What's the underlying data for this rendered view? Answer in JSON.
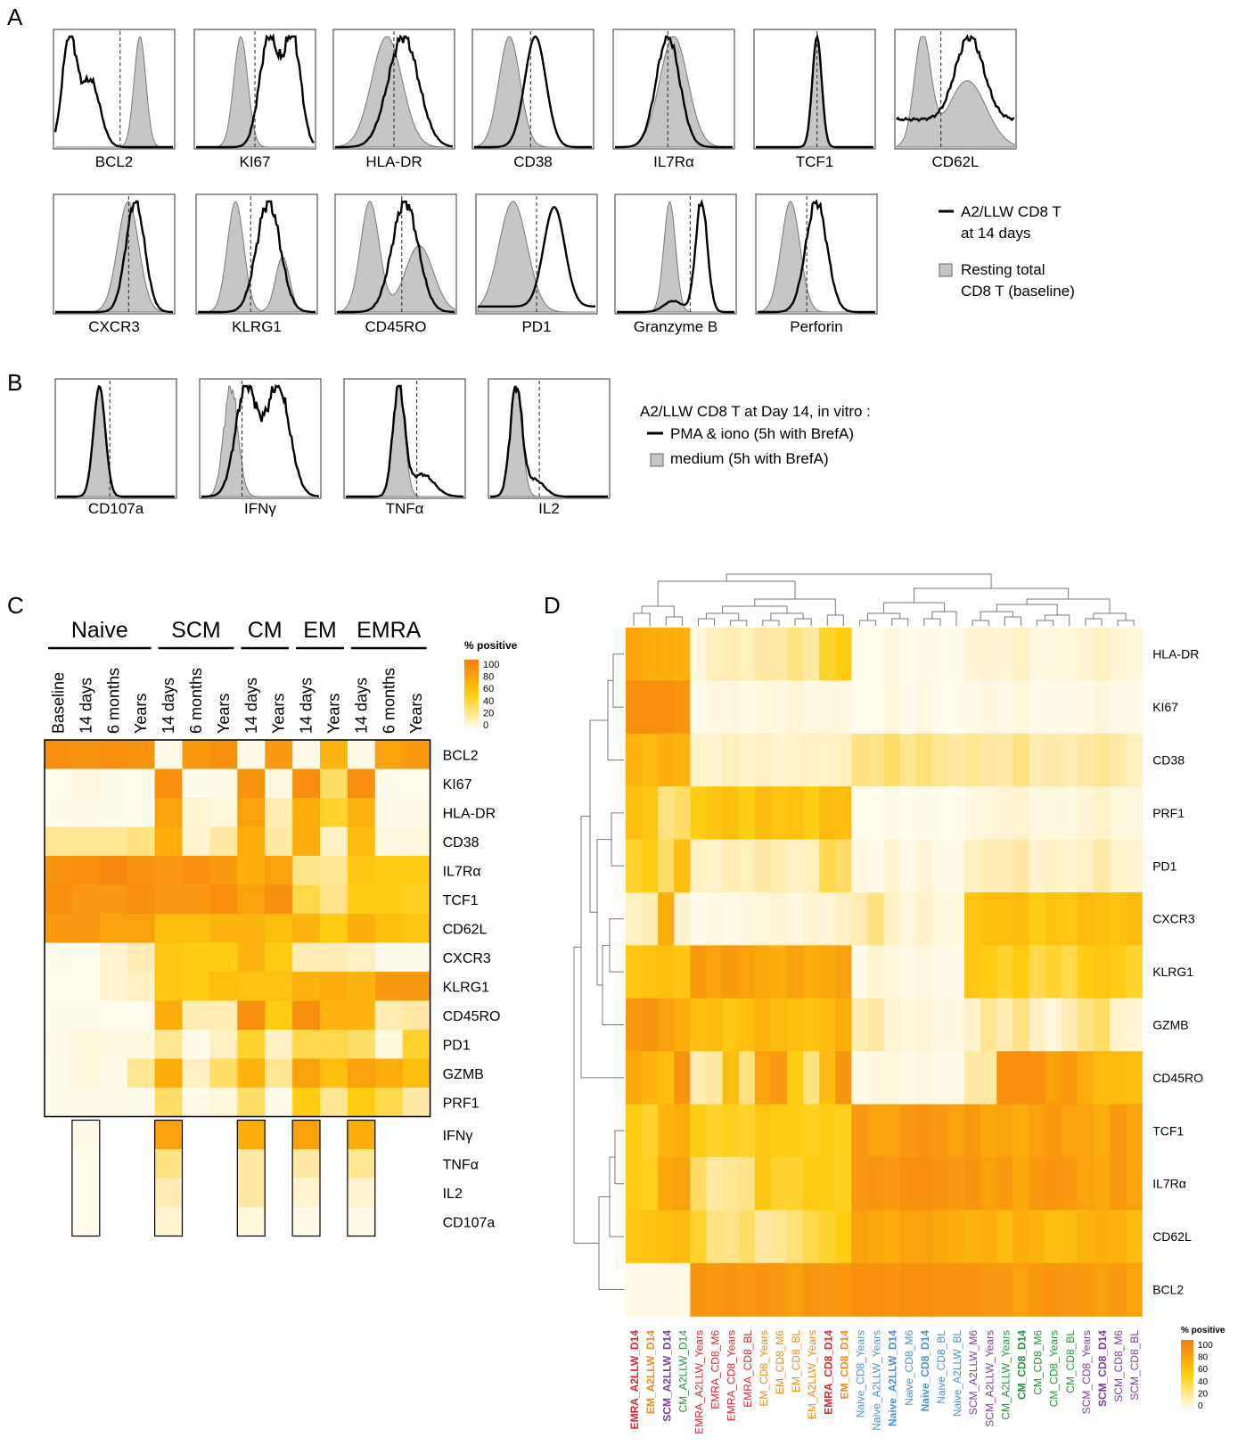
{
  "panels": {
    "A": "A",
    "B": "B",
    "C": "C",
    "D": "D"
  },
  "panelA": {
    "row1": [
      "BCL2",
      "KI67",
      "HLA-DR",
      "CD38",
      "IL7Rα",
      "TCF1",
      "CD62L"
    ],
    "row2": [
      "CXCR3",
      "KLRG1",
      "CD45RO",
      "PD1",
      "Granzyme B",
      "Perforin"
    ],
    "legend": {
      "line_label_1": "A2/LLW CD8 T",
      "line_label_2": "at 14 days",
      "fill_label_1": "Resting total",
      "fill_label_2": "CD8 T (baseline)"
    }
  },
  "panelB": {
    "labels": [
      "CD107a",
      "IFNγ",
      "TNFα",
      "IL2"
    ],
    "legend": {
      "title": "A2/LLW CD8 T at Day 14, in vitro :",
      "line_label": "PMA & iono (5h with BrefA)",
      "fill_label": "medium (5h with BrefA)"
    }
  },
  "panelC": {
    "groups": [
      "Naive",
      "SCM",
      "CM",
      "EM",
      "EMRA"
    ],
    "columns": [
      "Baseline",
      "14 days",
      "6 months",
      "Years",
      "14 days",
      "6 months",
      "Years",
      "14 days",
      "Years",
      "14 days",
      "Years",
      "14 days",
      "6 months",
      "Years"
    ],
    "rows": [
      "BCL2",
      "KI67",
      "HLA-DR",
      "CD38",
      "IL7Rα",
      "TCF1",
      "CD62L",
      "CXCR3",
      "KLRG1",
      "CD45RO",
      "PD1",
      "GZMB",
      "PRF1"
    ],
    "func_rows": [
      "IFNγ",
      "TNFα",
      "IL2",
      "CD107a"
    ],
    "legend_title": "% positive",
    "legend_ticks": [
      "100",
      "80",
      "60",
      "40",
      "20",
      "0"
    ]
  },
  "panelD": {
    "rows": [
      "HLA-DR",
      "KI67",
      "CD38",
      "PRF1",
      "PD1",
      "CXCR3",
      "KLRG1",
      "GZMB",
      "CD45RO",
      "TCF1",
      "IL7Rα",
      "CD62L",
      "BCL2"
    ],
    "columns": [
      {
        "label": "EMRA_A2LLW_D14",
        "color": "#e0262b",
        "bold": true
      },
      {
        "label": "EM_A2LLW_D14",
        "color": "#f08a1c",
        "bold": true
      },
      {
        "label": "SCM_A2LLW_D14",
        "color": "#7a3f9d",
        "bold": true
      },
      {
        "label": "CM_A2LLW_D14",
        "color": "#22963a",
        "bold": false
      },
      {
        "label": "EMRA_A2LLW_Years",
        "color": "#e0262b",
        "bold": false
      },
      {
        "label": "EMRA_CD8_M6",
        "color": "#e0262b",
        "bold": false
      },
      {
        "label": "EMRA_CD8_Years",
        "color": "#e0262b",
        "bold": false
      },
      {
        "label": "EMRA_CD8_BL",
        "color": "#e0262b",
        "bold": false
      },
      {
        "label": "EM_CD8_Years",
        "color": "#f08a1c",
        "bold": false
      },
      {
        "label": "EM_CD8_M6",
        "color": "#f08a1c",
        "bold": false
      },
      {
        "label": "EM_CD8_BL",
        "color": "#f08a1c",
        "bold": false
      },
      {
        "label": "EM_A2LLW_Years",
        "color": "#f08a1c",
        "bold": false
      },
      {
        "label": "EMRA_CD8_D14",
        "color": "#e0262b",
        "bold": true
      },
      {
        "label": "EM_CD8_D14",
        "color": "#f08a1c",
        "bold": true
      },
      {
        "label": "Naive_CD8_Years",
        "color": "#4a90d9",
        "bold": false
      },
      {
        "label": "Naive_A2LLW_Years",
        "color": "#4a90d9",
        "bold": false
      },
      {
        "label": "Naive_A2LLW_D14",
        "color": "#4a90d9",
        "bold": true
      },
      {
        "label": "Naive_CD8_M6",
        "color": "#4a90d9",
        "bold": false
      },
      {
        "label": "Naive_CD8_D14",
        "color": "#4a90d9",
        "bold": true
      },
      {
        "label": "Naive_CD8_BL",
        "color": "#4a90d9",
        "bold": false
      },
      {
        "label": "Naive_A2LLW_BL",
        "color": "#4a90d9",
        "bold": false
      },
      {
        "label": "SCM_A2LLW_M6",
        "color": "#7a3f9d",
        "bold": false
      },
      {
        "label": "SCM_A2LLW_Years",
        "color": "#7a3f9d",
        "bold": false
      },
      {
        "label": "CM_A2LLW_Years",
        "color": "#22963a",
        "bold": false
      },
      {
        "label": "CM_CD8_D14",
        "color": "#22963a",
        "bold": true
      },
      {
        "label": "CM_CD8_M6",
        "color": "#22963a",
        "bold": false
      },
      {
        "label": "CM_CD8_Years",
        "color": "#22963a",
        "bold": false
      },
      {
        "label": "CM_CD8_BL",
        "color": "#22963a",
        "bold": false
      },
      {
        "label": "SCM_CD8_Years",
        "color": "#7a3f9d",
        "bold": false
      },
      {
        "label": "SCM_CD8_D14",
        "color": "#7a3f9d",
        "bold": true
      },
      {
        "label": "SCM_CD8_M6",
        "color": "#7a3f9d",
        "bold": false
      },
      {
        "label": "SCM_CD8_BL",
        "color": "#7a3f9d",
        "bold": false
      }
    ],
    "legend_title": "% positive",
    "legend_ticks": [
      "100",
      "80",
      "60",
      "40",
      "20",
      "0"
    ]
  },
  "chart_data": [
    {
      "type": "heatmap",
      "title": "",
      "value_unit": "% positive",
      "range": [
        0,
        100
      ],
      "groups": [
        "Naive",
        "SCM",
        "CM",
        "EM",
        "EMRA"
      ],
      "columns": [
        "Baseline",
        "14 days",
        "6 months",
        "Years",
        "14 days",
        "6 months",
        "Years",
        "14 days",
        "Years",
        "14 days",
        "Years",
        "14 days",
        "6 months",
        "Years"
      ],
      "rows": [
        "BCL2",
        "KI67",
        "HLA-DR",
        "CD38",
        "IL7Rα",
        "TCF1",
        "CD62L",
        "CXCR3",
        "KLRG1",
        "CD45RO",
        "PD1",
        "GZMB",
        "PRF1"
      ],
      "values": [
        [
          92,
          90,
          92,
          90,
          5,
          88,
          92,
          5,
          88,
          5,
          75,
          5,
          85,
          88
        ],
        [
          2,
          8,
          3,
          2,
          92,
          3,
          5,
          90,
          8,
          92,
          45,
          92,
          3,
          2
        ],
        [
          3,
          5,
          3,
          2,
          85,
          15,
          10,
          85,
          25,
          80,
          55,
          75,
          5,
          5
        ],
        [
          35,
          35,
          35,
          40,
          80,
          15,
          30,
          78,
          30,
          80,
          20,
          72,
          8,
          10
        ],
        [
          90,
          92,
          95,
          90,
          88,
          92,
          88,
          78,
          85,
          38,
          35,
          65,
          60,
          62
        ],
        [
          92,
          88,
          88,
          92,
          88,
          88,
          92,
          85,
          92,
          50,
          38,
          60,
          60,
          58
        ],
        [
          88,
          88,
          85,
          85,
          70,
          70,
          75,
          75,
          70,
          75,
          62,
          80,
          70,
          65
        ],
        [
          3,
          2,
          15,
          25,
          65,
          60,
          60,
          75,
          62,
          25,
          25,
          20,
          3,
          3
        ],
        [
          2,
          2,
          15,
          20,
          65,
          62,
          70,
          68,
          68,
          75,
          80,
          75,
          88,
          88
        ],
        [
          3,
          3,
          2,
          2,
          80,
          25,
          25,
          92,
          62,
          92,
          75,
          75,
          25,
          30
        ],
        [
          5,
          10,
          8,
          8,
          35,
          5,
          20,
          55,
          20,
          50,
          50,
          45,
          10,
          55
        ],
        [
          3,
          10,
          5,
          35,
          80,
          20,
          45,
          75,
          35,
          85,
          70,
          85,
          80,
          70
        ],
        [
          3,
          5,
          5,
          3,
          45,
          5,
          10,
          45,
          5,
          60,
          35,
          60,
          50,
          30
        ]
      ],
      "function_rows": [
        "IFNγ",
        "TNFα",
        "IL2",
        "CD107a"
      ],
      "function_columns": [
        "Naive 14 days",
        "SCM 14 days",
        "CM 14 days",
        "EM 14 days",
        "EMRA 14 days"
      ],
      "function_values": [
        [
          5,
          85,
          80,
          85,
          80
        ],
        [
          2,
          40,
          30,
          30,
          35
        ],
        [
          2,
          25,
          30,
          15,
          15
        ],
        [
          2,
          15,
          10,
          5,
          5
        ]
      ]
    },
    {
      "type": "heatmap",
      "title": "",
      "value_unit": "% positive",
      "range": [
        0,
        100
      ],
      "rows": [
        "HLA-DR",
        "KI67",
        "CD38",
        "PRF1",
        "PD1",
        "CXCR3",
        "KLRG1",
        "GZMB",
        "CD45RO",
        "TCF1",
        "IL7Rα",
        "CD62L",
        "BCL2"
      ],
      "columns": [
        "EMRA_A2LLW_D14",
        "EM_A2LLW_D14",
        "SCM_A2LLW_D14",
        "CM_A2LLW_D14",
        "EMRA_A2LLW_Years",
        "EMRA_CD8_M6",
        "EMRA_CD8_Years",
        "EMRA_CD8_BL",
        "EM_CD8_Years",
        "EM_CD8_M6",
        "EM_CD8_BL",
        "EM_A2LLW_Years",
        "EMRA_CD8_D14",
        "EM_CD8_D14",
        "Naive_CD8_Years",
        "Naive_A2LLW_Years",
        "Naive_A2LLW_D14",
        "Naive_CD8_M6",
        "Naive_CD8_D14",
        "Naive_CD8_BL",
        "Naive_A2LLW_BL",
        "SCM_A2LLW_M6",
        "SCM_A2LLW_Years",
        "CM_A2LLW_Years",
        "CM_CD8_D14",
        "CM_CD8_M6",
        "CM_CD8_Years",
        "CM_CD8_BL",
        "SCM_CD8_Years",
        "SCM_CD8_D14",
        "SCM_CD8_M6",
        "SCM_CD8_BL"
      ],
      "values": [
        [
          85,
          80,
          80,
          78,
          10,
          22,
          25,
          22,
          30,
          28,
          40,
          30,
          55,
          60,
          3,
          2,
          8,
          2,
          5,
          2,
          3,
          12,
          15,
          12,
          20,
          8,
          10,
          10,
          15,
          20,
          12,
          10
        ],
        [
          92,
          92,
          92,
          90,
          5,
          8,
          8,
          5,
          10,
          8,
          12,
          8,
          10,
          8,
          2,
          2,
          10,
          2,
          8,
          2,
          2,
          5,
          8,
          5,
          10,
          4,
          5,
          5,
          6,
          10,
          5,
          5
        ],
        [
          75,
          72,
          78,
          75,
          18,
          15,
          22,
          18,
          20,
          15,
          18,
          20,
          18,
          22,
          40,
          38,
          45,
          35,
          42,
          35,
          30,
          35,
          30,
          28,
          40,
          25,
          28,
          25,
          30,
          35,
          28,
          22
        ],
        [
          70,
          65,
          40,
          45,
          60,
          65,
          70,
          60,
          72,
          65,
          68,
          60,
          72,
          70,
          2,
          2,
          5,
          2,
          4,
          2,
          2,
          8,
          10,
          12,
          15,
          8,
          10,
          8,
          12,
          18,
          10,
          8
        ],
        [
          55,
          60,
          45,
          70,
          20,
          18,
          25,
          22,
          30,
          25,
          20,
          22,
          50,
          45,
          8,
          5,
          15,
          5,
          12,
          5,
          5,
          20,
          25,
          25,
          30,
          15,
          20,
          15,
          20,
          28,
          18,
          15
        ],
        [
          20,
          25,
          80,
          15,
          3,
          8,
          5,
          8,
          10,
          12,
          8,
          15,
          12,
          20,
          25,
          40,
          20,
          10,
          18,
          10,
          8,
          65,
          70,
          70,
          72,
          60,
          68,
          65,
          72,
          70,
          68,
          72
        ],
        [
          65,
          68,
          70,
          65,
          88,
          85,
          88,
          85,
          82,
          80,
          85,
          80,
          82,
          85,
          5,
          15,
          10,
          5,
          8,
          5,
          3,
          65,
          60,
          55,
          62,
          50,
          55,
          50,
          62,
          65,
          60,
          55
        ],
        [
          88,
          90,
          85,
          80,
          70,
          72,
          65,
          70,
          75,
          72,
          70,
          68,
          72,
          80,
          25,
          30,
          15,
          10,
          12,
          8,
          8,
          15,
          35,
          25,
          40,
          20,
          10,
          25,
          40,
          45,
          18,
          12
        ],
        [
          82,
          75,
          70,
          90,
          25,
          30,
          70,
          40,
          85,
          88,
          60,
          40,
          72,
          90,
          5,
          8,
          10,
          5,
          8,
          5,
          5,
          30,
          30,
          92,
          92,
          92,
          85,
          88,
          80,
          72,
          72,
          70
        ],
        [
          60,
          55,
          75,
          80,
          60,
          55,
          58,
          55,
          65,
          62,
          60,
          58,
          60,
          58,
          88,
          85,
          85,
          88,
          90,
          88,
          85,
          88,
          82,
          85,
          80,
          85,
          88,
          85,
          85,
          80,
          88,
          85
        ],
        [
          62,
          58,
          82,
          85,
          45,
          30,
          35,
          38,
          65,
          55,
          55,
          62,
          60,
          58,
          88,
          90,
          88,
          92,
          92,
          90,
          88,
          90,
          85,
          88,
          82,
          88,
          90,
          88,
          85,
          82,
          88,
          85
        ],
        [
          65,
          68,
          70,
          72,
          55,
          40,
          38,
          45,
          30,
          35,
          42,
          50,
          55,
          60,
          85,
          82,
          80,
          85,
          85,
          82,
          80,
          75,
          78,
          72,
          80,
          75,
          70,
          72,
          75,
          78,
          75,
          72
        ],
        [
          5,
          5,
          5,
          5,
          90,
          88,
          90,
          88,
          90,
          88,
          85,
          90,
          88,
          88,
          92,
          92,
          90,
          92,
          92,
          90,
          90,
          90,
          88,
          88,
          85,
          88,
          90,
          88,
          88,
          85,
          88,
          85
        ]
      ]
    }
  ]
}
